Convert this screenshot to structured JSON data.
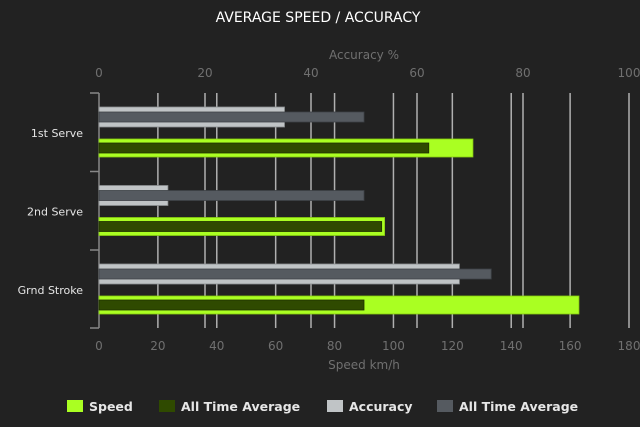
{
  "chart_data": {
    "type": "bar",
    "orientation": "horizontal",
    "title": "AVERAGE SPEED / ACCURACY",
    "categories": [
      "1st Serve",
      "2nd Serve",
      "Grnd Stroke"
    ],
    "speed_axis": {
      "label": "Speed km/h",
      "range": [
        0,
        180
      ],
      "ticks": [
        "0",
        "20",
        "40",
        "60",
        "80",
        "100",
        "120",
        "140",
        "160",
        "180"
      ]
    },
    "accuracy_axis": {
      "label": "Accuracy %",
      "range": [
        0,
        100
      ],
      "ticks": [
        "0",
        "20",
        "40",
        "60",
        "80",
        "100"
      ]
    },
    "grid": true,
    "legend_position": "bottom",
    "series": [
      {
        "name": "Speed",
        "axis": "speed",
        "color": "#aaff22",
        "values": [
          127,
          97,
          163
        ]
      },
      {
        "name": "All Time Average",
        "axis": "speed",
        "color": "#2f4a00",
        "values": [
          112,
          96,
          90
        ]
      },
      {
        "name": "Accuracy",
        "axis": "accuracy",
        "color": "#c0c4c6",
        "values": [
          35,
          13,
          68
        ]
      },
      {
        "name": "All Time Average",
        "axis": "accuracy",
        "color": "#555a60",
        "values": [
          50,
          50,
          74
        ]
      }
    ]
  }
}
